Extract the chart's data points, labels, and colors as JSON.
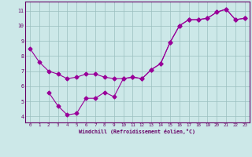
{
  "xlabel": "Windchill (Refroidissement éolien,°C)",
  "background_color": "#cce8e8",
  "line_color": "#990099",
  "marker": "D",
  "markersize": 2.5,
  "linewidth": 0.8,
  "xlim": [
    -0.5,
    23.5
  ],
  "ylim": [
    3.6,
    11.6
  ],
  "xticks": [
    0,
    1,
    2,
    3,
    4,
    5,
    6,
    7,
    8,
    9,
    10,
    11,
    12,
    13,
    14,
    15,
    16,
    17,
    18,
    19,
    20,
    21,
    22,
    23
  ],
  "yticks": [
    4,
    5,
    6,
    7,
    8,
    9,
    10,
    11
  ],
  "grid_color": "#9bbfbf",
  "series1_x": [
    0,
    1,
    2,
    3,
    4,
    5,
    6,
    7,
    8,
    9,
    10,
    11,
    12,
    13,
    14,
    15,
    16,
    17,
    18,
    19,
    20,
    21,
    22,
    23
  ],
  "series1_y": [
    8.5,
    7.6,
    7.0,
    6.8,
    6.5,
    6.6,
    6.8,
    6.8,
    6.6,
    6.5,
    6.5,
    6.6,
    6.5,
    7.1,
    7.5,
    8.9,
    10.0,
    10.4,
    10.4,
    10.5,
    10.9,
    11.1,
    10.4,
    10.5
  ],
  "series2_x": [
    2,
    3,
    4,
    5,
    6,
    7,
    8,
    9,
    10,
    11,
    12,
    13,
    14,
    15,
    16,
    17,
    18,
    19,
    20,
    21,
    22,
    23
  ],
  "series2_y": [
    5.6,
    4.7,
    4.1,
    4.2,
    5.2,
    5.2,
    5.6,
    5.3,
    6.5,
    6.6,
    6.5,
    7.1,
    7.5,
    8.9,
    10.0,
    10.4,
    10.4,
    10.5,
    10.9,
    11.1,
    10.4,
    10.5
  ]
}
